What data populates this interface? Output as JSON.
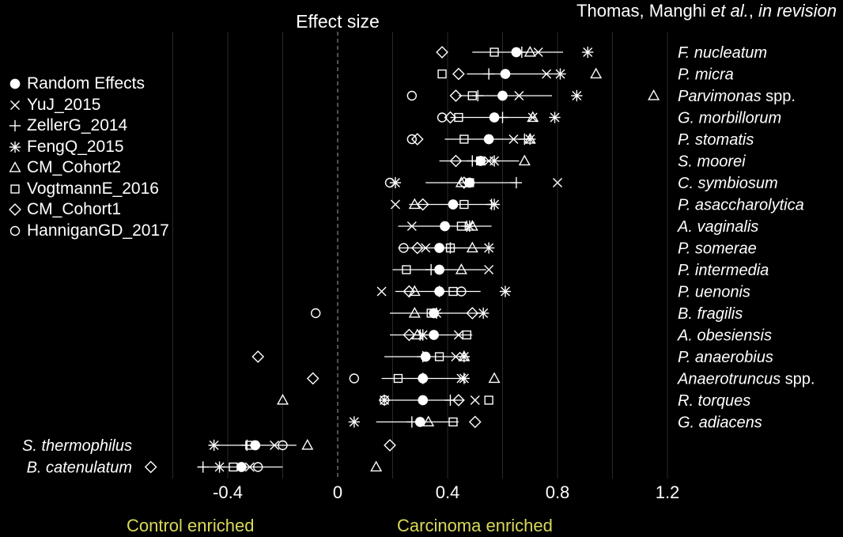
{
  "citation": {
    "authors": "Thomas, Manghi",
    "etal": "et al.",
    "sep": ", ",
    "status": "in revision"
  },
  "labels": {
    "control": "Control enriched",
    "carcinoma": "Carcinoma enriched"
  },
  "colors": {
    "background": "#000000",
    "foreground": "#ffffff",
    "grid": "#2a2a2a",
    "zero_line": "#888888",
    "bottom_labels": "#d8d85a"
  },
  "chart_data": {
    "type": "scatter",
    "title": "Effect size",
    "xlim": [
      -0.6,
      1.25
    ],
    "xticks": [
      "-0.4",
      "0",
      "0.4",
      "0.8",
      "1.2"
    ],
    "xtick_values": [
      -0.4,
      0,
      0.4,
      0.8,
      1.2
    ],
    "zero_line": "dashed",
    "grid": true,
    "legend_position": "left",
    "legend": [
      {
        "name": "Random Effects",
        "symbol": "filled-circle"
      },
      {
        "name": "YuJ_2015",
        "symbol": "x"
      },
      {
        "name": "ZellerG_2014",
        "symbol": "plus"
      },
      {
        "name": "FengQ_2015",
        "symbol": "asterisk"
      },
      {
        "name": "CM_Cohort2",
        "symbol": "triangle"
      },
      {
        "name": "VogtmannE_2016",
        "symbol": "square"
      },
      {
        "name": "CM_Cohort1",
        "symbol": "diamond"
      },
      {
        "name": "HanniganGD_2017",
        "symbol": "circle"
      }
    ],
    "species": [
      {
        "parts": [
          {
            "t": "F. nucleatum",
            "i": true
          }
        ],
        "side": "right",
        "re": 0.65,
        "ci": [
          0.49,
          0.82
        ],
        "yu": 0.73,
        "zeller": 0.67,
        "feng": 0.91,
        "cm2": 0.7,
        "vogt": 0.57,
        "cm1": 0.38,
        "hann": null
      },
      {
        "parts": [
          {
            "t": "P. micra",
            "i": true
          }
        ],
        "side": "right",
        "re": 0.61,
        "ci": [
          0.47,
          0.79
        ],
        "yu": 0.76,
        "zeller": 0.55,
        "feng": 0.81,
        "cm2": 0.94,
        "vogt": 0.38,
        "cm1": 0.44,
        "hann": null
      },
      {
        "parts": [
          {
            "t": "Parvimonas",
            "i": true
          },
          {
            "t": " spp.",
            "i": false
          }
        ],
        "side": "right",
        "re": 0.6,
        "ci": [
          0.44,
          0.78
        ],
        "yu": 0.66,
        "zeller": 0.51,
        "feng": 0.87,
        "cm2": 1.15,
        "vogt": 0.49,
        "cm1": 0.43,
        "hann": 0.27
      },
      {
        "parts": [
          {
            "t": "G. morbillorum",
            "i": true
          }
        ],
        "side": "right",
        "re": 0.57,
        "ci": [
          0.41,
          0.72
        ],
        "yu": 0.71,
        "zeller": 0.6,
        "feng": 0.79,
        "cm2": 0.71,
        "vogt": 0.44,
        "cm1": 0.41,
        "hann": 0.38
      },
      {
        "parts": [
          {
            "t": "P. stomatis",
            "i": true
          }
        ],
        "side": "right",
        "re": 0.55,
        "ci": [
          0.39,
          0.71
        ],
        "yu": 0.64,
        "zeller": 0.68,
        "feng": 0.7,
        "cm2": 0.7,
        "vogt": 0.46,
        "cm1": 0.29,
        "hann": 0.27
      },
      {
        "parts": [
          {
            "t": "S. moorei",
            "i": true
          }
        ],
        "side": "right",
        "re": 0.52,
        "ci": [
          0.37,
          0.66
        ],
        "yu": 0.55,
        "zeller": 0.49,
        "feng": 0.57,
        "cm2": 0.68,
        "vogt": 0.52,
        "cm1": 0.43,
        "hann": null
      },
      {
        "parts": [
          {
            "t": "C. symbiosum",
            "i": true
          }
        ],
        "side": "right",
        "re": 0.48,
        "ci": [
          0.32,
          0.65
        ],
        "yu": 0.8,
        "zeller": 0.65,
        "feng": 0.21,
        "cm2": 0.45,
        "vogt": 0.48,
        "cm1": 0.46,
        "hann": 0.19
      },
      {
        "parts": [
          {
            "t": "P. asaccharolytica",
            "i": true
          }
        ],
        "side": "right",
        "re": 0.42,
        "ci": [
          0.26,
          0.58
        ],
        "yu": 0.21,
        "zeller": 0.56,
        "feng": 0.57,
        "cm2": 0.28,
        "vogt": 0.46,
        "cm1": 0.31,
        "hann": null
      },
      {
        "parts": [
          {
            "t": "A. vaginalis",
            "i": true
          }
        ],
        "side": "right",
        "re": 0.39,
        "ci": [
          0.22,
          0.56
        ],
        "yu": 0.27,
        "zeller": 0.47,
        "feng": 0.48,
        "cm2": 0.49,
        "vogt": 0.45,
        "cm1": null,
        "hann": null
      },
      {
        "parts": [
          {
            "t": "P. somerae",
            "i": true
          }
        ],
        "side": "right",
        "re": 0.37,
        "ci": [
          0.22,
          0.53
        ],
        "yu": 0.32,
        "zeller": 0.41,
        "feng": 0.55,
        "cm2": 0.49,
        "vogt": 0.41,
        "cm1": 0.29,
        "hann": 0.24
      },
      {
        "parts": [
          {
            "t": "P. intermedia",
            "i": true
          }
        ],
        "side": "right",
        "re": 0.37,
        "ci": [
          0.2,
          0.54
        ],
        "yu": 0.55,
        "zeller": 0.34,
        "feng": null,
        "cm2": 0.45,
        "vogt": 0.25,
        "cm1": null,
        "hann": null
      },
      {
        "parts": [
          {
            "t": "P. uenonis",
            "i": true
          }
        ],
        "side": "right",
        "re": 0.37,
        "ci": [
          0.21,
          0.52
        ],
        "yu": 0.16,
        "zeller": 0.37,
        "feng": 0.61,
        "cm2": 0.28,
        "vogt": 0.42,
        "cm1": 0.26,
        "hann": 0.45
      },
      {
        "parts": [
          {
            "t": "B. fragilis",
            "i": true
          }
        ],
        "side": "right",
        "re": 0.35,
        "ci": [
          0.19,
          0.52
        ],
        "yu": 0.36,
        "zeller": 0.36,
        "feng": 0.53,
        "cm2": 0.28,
        "vogt": 0.34,
        "cm1": 0.49,
        "hann": -0.08
      },
      {
        "parts": [
          {
            "t": "A. obesiensis",
            "i": true
          }
        ],
        "side": "right",
        "re": 0.35,
        "ci": [
          0.19,
          0.49
        ],
        "yu": 0.44,
        "zeller": 0.3,
        "feng": 0.31,
        "cm2": 0.29,
        "vogt": 0.47,
        "cm1": 0.26,
        "hann": null
      },
      {
        "parts": [
          {
            "t": "P. anaerobius",
            "i": true
          }
        ],
        "side": "right",
        "re": 0.32,
        "ci": [
          0.17,
          0.48
        ],
        "yu": 0.43,
        "zeller": 0.31,
        "feng": 0.46,
        "cm2": 0.46,
        "vogt": 0.37,
        "cm1": -0.29,
        "hann": null
      },
      {
        "parts": [
          {
            "t": "Anaerotruncus",
            "i": true
          },
          {
            "t": " spp.",
            "i": false
          }
        ],
        "side": "right",
        "re": 0.31,
        "ci": [
          0.16,
          0.46
        ],
        "yu": 0.45,
        "zeller": 0.31,
        "feng": 0.46,
        "cm2": 0.57,
        "vogt": 0.22,
        "cm1": -0.09,
        "hann": 0.06
      },
      {
        "parts": [
          {
            "t": "R. torques",
            "i": true
          }
        ],
        "side": "right",
        "re": 0.31,
        "ci": [
          0.17,
          0.46
        ],
        "yu": 0.5,
        "zeller": 0.41,
        "feng": 0.17,
        "cm2": -0.2,
        "vogt": 0.55,
        "cm1": 0.44,
        "hann": 0.17
      },
      {
        "parts": [
          {
            "t": "G. adiacens",
            "i": true
          }
        ],
        "side": "right",
        "re": 0.3,
        "ci": [
          0.14,
          0.44
        ],
        "yu": null,
        "zeller": 0.27,
        "feng": 0.06,
        "cm2": 0.33,
        "vogt": 0.42,
        "cm1": 0.5,
        "hann": null
      },
      {
        "parts": [
          {
            "t": "S. thermophilus",
            "i": true
          }
        ],
        "side": "left",
        "re": -0.3,
        "ci": [
          -0.47,
          -0.15
        ],
        "yu": -0.23,
        "zeller": -0.33,
        "feng": -0.45,
        "cm2": -0.11,
        "vogt": -0.32,
        "cm1": 0.19,
        "hann": -0.2
      },
      {
        "parts": [
          {
            "t": "B. catenulatum",
            "i": true
          }
        ],
        "side": "left",
        "re": -0.35,
        "ci": [
          -0.51,
          -0.2
        ],
        "yu": -0.32,
        "zeller": -0.49,
        "feng": -0.43,
        "cm2": 0.14,
        "vogt": -0.38,
        "cm1": -0.68,
        "hann": -0.29
      }
    ]
  }
}
